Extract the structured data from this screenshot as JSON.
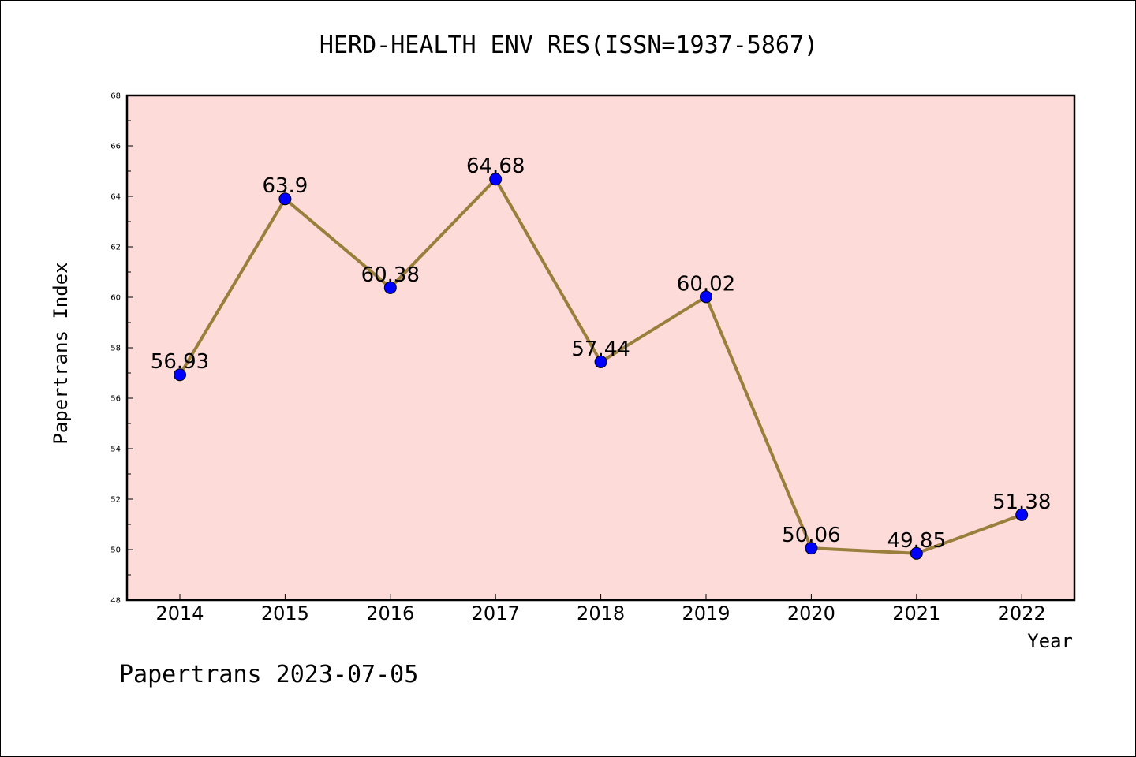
{
  "chart_data": {
    "type": "line",
    "title": "HERD-HEALTH ENV RES(ISSN=1937-5867)",
    "xlabel": "Year",
    "ylabel": "Papertrans Index",
    "categories": [
      "2014",
      "2015",
      "2016",
      "2017",
      "2018",
      "2019",
      "2020",
      "2021",
      "2022"
    ],
    "values": [
      56.93,
      63.9,
      60.38,
      64.68,
      57.44,
      60.02,
      50.06,
      49.85,
      51.38
    ],
    "value_labels": [
      "56.93",
      "63.9",
      "60.38",
      "64.68",
      "57.44",
      "60.02",
      "50.06",
      "49.85",
      "51.38"
    ],
    "ylim": [
      48,
      68
    ],
    "yticks": [
      48,
      50,
      52,
      54,
      56,
      58,
      60,
      62,
      64,
      66,
      68
    ],
    "grid": false,
    "plot_background": "#fddbd8",
    "line_color": "#9a7f3c",
    "marker_color": "#0000ff"
  },
  "footer": "Papertrans 2023-07-05"
}
